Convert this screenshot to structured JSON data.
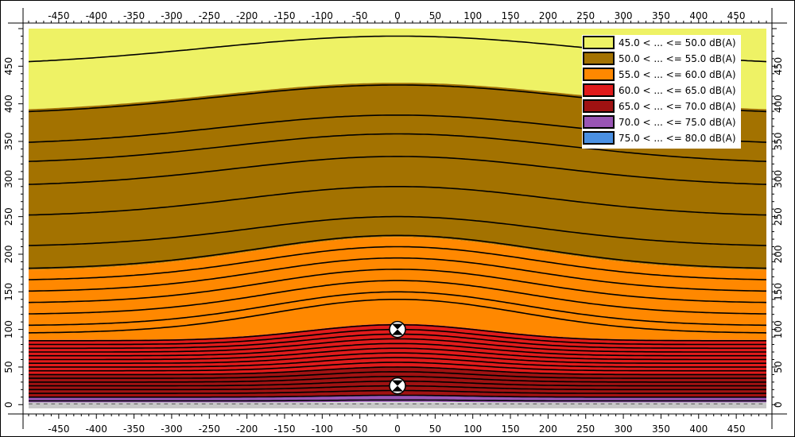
{
  "chart_data": {
    "type": "heatmap",
    "title": "",
    "xlabel": "",
    "ylabel": "",
    "xlim": [
      -490,
      490
    ],
    "ylim": [
      -5,
      500
    ],
    "x_ticks": [
      -450,
      -400,
      -350,
      -300,
      -250,
      -200,
      -150,
      -100,
      -50,
      0,
      50,
      100,
      150,
      200,
      250,
      300,
      350,
      400,
      450
    ],
    "y_ticks": [
      0,
      50,
      100,
      150,
      200,
      250,
      300,
      350,
      400,
      450
    ],
    "grid": false,
    "legend_position": "top-right",
    "bands": [
      {
        "label": "45.0 < ... <= 50.0 dB(A)",
        "low": 45.0,
        "high": 50.0,
        "color": "#EEF265"
      },
      {
        "label": "50.0 < ... <= 55.0 dB(A)",
        "low": 50.0,
        "high": 55.0,
        "color": "#A37200"
      },
      {
        "label": "55.0 < ... <= 60.0 dB(A)",
        "low": 55.0,
        "high": 60.0,
        "color": "#FF8800"
      },
      {
        "label": "60.0 < ... <= 65.0 dB(A)",
        "low": 60.0,
        "high": 65.0,
        "color": "#E01B1B"
      },
      {
        "label": "65.0 < ... <= 70.0 dB(A)",
        "low": 65.0,
        "high": 70.0,
        "color": "#A01212"
      },
      {
        "label": "70.0 < ... <= 75.0 dB(A)",
        "low": 70.0,
        "high": 75.0,
        "color": "#9955B5"
      },
      {
        "label": "75.0 < ... <= 80.0 dB(A)",
        "low": 75.0,
        "high": 80.0,
        "color": "#4A90E2"
      }
    ],
    "contour_levels_y_at_edge": [
      5,
      10,
      15,
      20,
      25,
      30,
      35,
      40,
      45,
      50,
      55,
      60,
      65,
      70,
      75,
      80,
      85,
      95,
      105,
      120,
      135,
      150,
      165,
      180,
      210,
      250,
      290,
      320,
      345,
      385,
      450
    ],
    "band_edges_y_at_edge": [
      {
        "band": 0,
        "bottom": 388,
        "top": 500
      },
      {
        "band": 1,
        "bottom": 178,
        "top": 388
      },
      {
        "band": 2,
        "bottom": 86,
        "top": 178
      },
      {
        "band": 3,
        "bottom": 40,
        "top": 86
      },
      {
        "band": 4,
        "bottom": 10,
        "top": 40
      },
      {
        "band": 5,
        "bottom": 3,
        "top": 10
      }
    ],
    "sources": [
      {
        "x": 0,
        "y": 100
      },
      {
        "x": 0,
        "y": 25
      }
    ]
  }
}
